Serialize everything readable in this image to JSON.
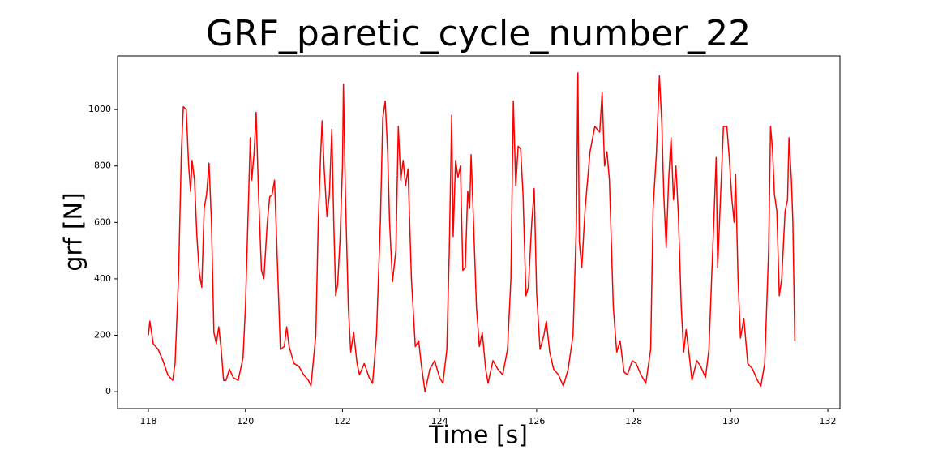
{
  "chart_data": {
    "type": "line",
    "title": "GRF_paretic_cycle_number_22",
    "x_label": "Time [s]",
    "y_label": "grf [N]",
    "xlim": [
      117.365,
      132.25
    ],
    "ylim": [
      -60,
      1190
    ],
    "xticks": [
      118,
      120,
      122,
      124,
      126,
      128,
      130,
      132
    ],
    "yticks": [
      0,
      200,
      400,
      600,
      800,
      1000
    ],
    "grid": false,
    "series": [
      {
        "name": "grf",
        "color": "#ff0000",
        "x": [
          118.0,
          118.03,
          118.1,
          118.2,
          118.3,
          118.4,
          118.5,
          118.55,
          118.62,
          118.68,
          118.72,
          118.78,
          118.83,
          118.87,
          118.9,
          118.95,
          119.0,
          119.05,
          119.1,
          119.15,
          119.2,
          119.25,
          119.3,
          119.35,
          119.4,
          119.45,
          119.5,
          119.55,
          119.6,
          119.67,
          119.75,
          119.85,
          119.95,
          120.0,
          120.05,
          120.1,
          120.13,
          120.18,
          120.22,
          120.27,
          120.33,
          120.38,
          120.45,
          120.5,
          120.55,
          120.6,
          120.65,
          120.72,
          120.8,
          120.85,
          120.9,
          121.0,
          121.1,
          121.2,
          121.3,
          121.35,
          121.45,
          121.5,
          121.55,
          121.58,
          121.62,
          121.68,
          121.73,
          121.78,
          121.82,
          121.86,
          121.9,
          121.95,
          122.0,
          122.02,
          122.06,
          122.12,
          122.17,
          122.23,
          122.3,
          122.35,
          122.45,
          122.55,
          122.62,
          122.7,
          122.78,
          122.83,
          122.88,
          122.93,
          122.97,
          123.03,
          123.1,
          123.15,
          123.2,
          123.25,
          123.3,
          123.35,
          123.42,
          123.5,
          123.57,
          123.62,
          123.7,
          123.8,
          123.9,
          124.0,
          124.07,
          124.15,
          124.2,
          124.25,
          124.28,
          124.33,
          124.38,
          124.43,
          124.48,
          124.53,
          124.58,
          124.62,
          124.65,
          124.7,
          124.76,
          124.82,
          124.88,
          124.95,
          125.0,
          125.1,
          125.2,
          125.3,
          125.4,
          125.47,
          125.52,
          125.57,
          125.62,
          125.67,
          125.72,
          125.78,
          125.83,
          125.9,
          125.95,
          126.0,
          126.07,
          126.15,
          126.2,
          126.27,
          126.35,
          126.45,
          126.55,
          126.65,
          126.75,
          126.82,
          126.85,
          126.88,
          126.93,
          127.0,
          127.1,
          127.2,
          127.3,
          127.35,
          127.4,
          127.45,
          127.5,
          127.58,
          127.65,
          127.72,
          127.8,
          127.87,
          127.97,
          128.05,
          128.15,
          128.25,
          128.35,
          128.4,
          128.47,
          128.53,
          128.58,
          128.62,
          128.67,
          128.72,
          128.77,
          128.82,
          128.87,
          128.92,
          128.98,
          129.03,
          129.08,
          129.15,
          129.2,
          129.3,
          129.38,
          129.48,
          129.55,
          129.65,
          129.7,
          129.73,
          129.78,
          129.85,
          129.92,
          129.97,
          130.02,
          130.07,
          130.1,
          130.15,
          130.2,
          130.27,
          130.35,
          130.45,
          130.55,
          130.62,
          130.7,
          130.78,
          130.82,
          130.86,
          130.9,
          130.95,
          131.0,
          131.05,
          131.12,
          131.17,
          131.2,
          131.25,
          131.28,
          131.32
        ],
        "values": [
          200,
          250,
          170,
          150,
          110,
          60,
          40,
          100,
          400,
          850,
          1010,
          1000,
          800,
          710,
          820,
          750,
          550,
          420,
          370,
          650,
          700,
          810,
          600,
          210,
          170,
          230,
          150,
          40,
          40,
          80,
          50,
          40,
          120,
          300,
          600,
          900,
          750,
          850,
          990,
          700,
          430,
          400,
          600,
          690,
          700,
          750,
          500,
          150,
          160,
          230,
          160,
          100,
          90,
          60,
          40,
          20,
          200,
          600,
          840,
          960,
          800,
          620,
          700,
          930,
          600,
          340,
          380,
          540,
          800,
          1090,
          700,
          300,
          140,
          210,
          100,
          60,
          100,
          50,
          30,
          200,
          600,
          970,
          1030,
          850,
          600,
          390,
          500,
          940,
          750,
          820,
          730,
          790,
          400,
          160,
          180,
          100,
          0,
          80,
          110,
          50,
          30,
          150,
          500,
          980,
          550,
          820,
          760,
          800,
          430,
          440,
          710,
          650,
          840,
          600,
          300,
          160,
          210,
          80,
          30,
          110,
          80,
          60,
          150,
          400,
          1030,
          730,
          870,
          860,
          700,
          340,
          370,
          600,
          720,
          350,
          150,
          200,
          250,
          140,
          80,
          60,
          20,
          80,
          200,
          600,
          1130,
          530,
          440,
          650,
          850,
          940,
          920,
          1060,
          800,
          850,
          750,
          300,
          140,
          180,
          70,
          60,
          110,
          100,
          60,
          30,
          150,
          650,
          850,
          1120,
          950,
          700,
          510,
          750,
          900,
          680,
          800,
          630,
          300,
          140,
          220,
          120,
          40,
          110,
          90,
          50,
          150,
          600,
          830,
          440,
          650,
          940,
          940,
          830,
          690,
          600,
          770,
          400,
          190,
          260,
          100,
          80,
          40,
          20,
          100,
          500,
          940,
          860,
          700,
          640,
          340,
          400,
          640,
          680,
          900,
          750,
          600,
          180
        ]
      }
    ]
  }
}
